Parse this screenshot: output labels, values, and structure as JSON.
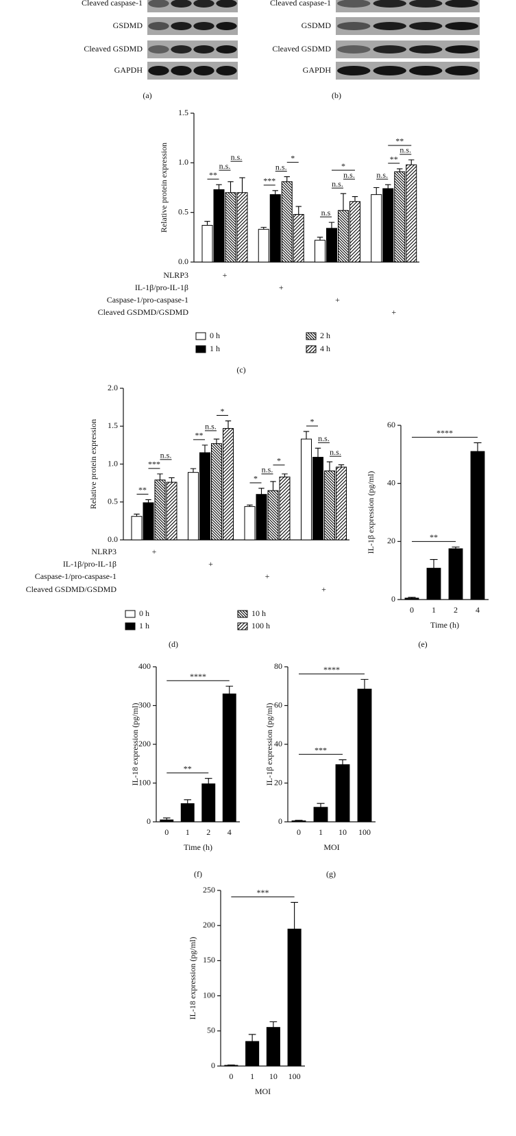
{
  "blots": [
    {
      "label": "(a)",
      "rows": [
        "Cleaved caspase-1",
        "GSDMD",
        "Cleaved GSDMD",
        "GAPDH"
      ]
    },
    {
      "label": "(b)",
      "rows": [
        "Cleaved caspase-1",
        "GSDMD",
        "Cleaved GSDMD",
        "GAPDH"
      ]
    }
  ],
  "chart_data": [
    {
      "type": "grouped-bar",
      "panel": "(c)",
      "ylabel": "Relative protein expression",
      "marker": "+",
      "categories": [
        "NLRP3",
        "IL-1β/pro-IL-1β",
        "Caspase-1/pro-caspase-1",
        "Cleaved GSDMD/GSDMD"
      ],
      "ylim": [
        0,
        1.5
      ],
      "yticks": [
        {
          "value": 0,
          "label": "0.0"
        },
        0.5,
        {
          "value": 1,
          "label": "1.0"
        },
        1.5
      ],
      "series": [
        {
          "name": "0 h",
          "color": "#ffffff",
          "pattern": "none",
          "values": [
            0.37,
            0.33,
            0.22,
            0.68
          ],
          "errors": [
            0.04,
            0.02,
            0.03,
            0.07
          ]
        },
        {
          "name": "1 h",
          "color": "#000000",
          "pattern": "none",
          "values": [
            0.73,
            0.68,
            0.34,
            0.74
          ],
          "errors": [
            0.05,
            0.04,
            0.06,
            0.04
          ]
        },
        {
          "name": "2 h",
          "color": "#ffffff",
          "pattern": "hatch-back",
          "values": [
            0.7,
            0.81,
            0.52,
            0.91
          ],
          "errors": [
            0.11,
            0.05,
            0.17,
            0.03
          ]
        },
        {
          "name": "4 h",
          "color": "#ffffff",
          "pattern": "hatch-fwd",
          "values": [
            0.7,
            0.48,
            0.61,
            0.98
          ],
          "errors": [
            0.15,
            0.08,
            0.05,
            0.05
          ]
        }
      ],
      "annotations": [
        {
          "label": "**",
          "group": 0,
          "from": 0,
          "to": 1
        },
        {
          "label": "n.s.",
          "group": 0,
          "from": 1,
          "to": 2
        },
        {
          "label": "n.s.",
          "group": 0,
          "from": 2,
          "to": 3
        },
        {
          "label": "***",
          "group": 1,
          "from": 0,
          "to": 1
        },
        {
          "label": "n.s.",
          "group": 1,
          "from": 1,
          "to": 2
        },
        {
          "label": "*",
          "group": 1,
          "from": 2,
          "to": 3
        },
        {
          "label": "n.s",
          "group": 2,
          "from": 0,
          "to": 1
        },
        {
          "label": "n.s.",
          "group": 2,
          "from": 1,
          "to": 2
        },
        {
          "label": "n.s.",
          "group": 2,
          "from": 2,
          "to": 3
        },
        {
          "label": "*",
          "group": 2,
          "from": 1,
          "to": 3
        },
        {
          "label": "n.s.",
          "group": 3,
          "from": 0,
          "to": 1
        },
        {
          "label": "**",
          "group": 3,
          "from": 1,
          "to": 2
        },
        {
          "label": "n.s.",
          "group": 3,
          "from": 2,
          "to": 3
        },
        {
          "label": "**",
          "group": 3,
          "from": 1,
          "to": 3
        }
      ]
    },
    {
      "type": "grouped-bar",
      "panel": "(d)",
      "ylabel": "Relative protein expression",
      "marker": "+",
      "categories": [
        "NLRP3",
        "IL-1β/pro-IL-1β",
        "Caspase-1/pro-caspase-1",
        "Cleaved GSDMD/GSDMD"
      ],
      "ylim": [
        0,
        2
      ],
      "yticks": [
        {
          "value": 0,
          "label": "0.0"
        },
        0.5,
        {
          "value": 1,
          "label": "1.0"
        },
        1.5,
        {
          "value": 2,
          "label": "2.0"
        }
      ],
      "series": [
        {
          "name": "0 h",
          "color": "#ffffff",
          "pattern": "none",
          "values": [
            0.31,
            0.89,
            0.44,
            1.33
          ],
          "errors": [
            0.03,
            0.05,
            0.02,
            0.1
          ]
        },
        {
          "name": "1 h",
          "color": "#000000",
          "pattern": "none",
          "values": [
            0.49,
            1.15,
            0.6,
            1.09
          ],
          "errors": [
            0.04,
            0.1,
            0.08,
            0.12
          ]
        },
        {
          "name": "10 h",
          "color": "#ffffff",
          "pattern": "hatch-back",
          "values": [
            0.79,
            1.27,
            0.65,
            0.91
          ],
          "errors": [
            0.08,
            0.06,
            0.12,
            0.12
          ]
        },
        {
          "name": "100 h",
          "color": "#ffffff",
          "pattern": "hatch-fwd",
          "values": [
            0.76,
            1.47,
            0.83,
            0.96
          ],
          "errors": [
            0.06,
            0.1,
            0.04,
            0.03
          ]
        }
      ],
      "annotations": [
        {
          "label": "**",
          "group": 0,
          "from": 0,
          "to": 1
        },
        {
          "label": "***",
          "group": 0,
          "from": 1,
          "to": 2
        },
        {
          "label": "n.s.",
          "group": 0,
          "from": 2,
          "to": 3
        },
        {
          "label": "**",
          "group": 1,
          "from": 0,
          "to": 1
        },
        {
          "label": "n.s.",
          "group": 1,
          "from": 1,
          "to": 2
        },
        {
          "label": "*",
          "group": 1,
          "from": 2,
          "to": 3
        },
        {
          "label": "*",
          "group": 2,
          "from": 0,
          "to": 1
        },
        {
          "label": "n.s.",
          "group": 2,
          "from": 1,
          "to": 2
        },
        {
          "label": "*",
          "group": 2,
          "from": 2,
          "to": 3
        },
        {
          "label": "*",
          "group": 3,
          "from": 0,
          "to": 1
        },
        {
          "label": "n.s.",
          "group": 3,
          "from": 1,
          "to": 2
        },
        {
          "label": "n.s.",
          "group": 3,
          "from": 2,
          "to": 3
        }
      ]
    },
    {
      "type": "bar",
      "panel": "(e)",
      "ylabel": "IL-1β expression (pg/ml)",
      "xlabel": "Time (h)",
      "color": "#000000",
      "categories": [
        "0",
        "1",
        "2",
        "4"
      ],
      "values": [
        0.5,
        10.8,
        17.5,
        51
      ],
      "errors": [
        0.3,
        3,
        0.6,
        3
      ],
      "ylim": [
        0,
        60
      ],
      "yticks": [
        0,
        20,
        40,
        60
      ],
      "annotations": [
        {
          "label": "**",
          "from": 0,
          "to": 2
        },
        {
          "label": "****",
          "from": 0,
          "to": 3
        }
      ]
    },
    {
      "type": "bar",
      "panel": "(f)",
      "ylabel": "IL-18 expression (pg/ml)",
      "xlabel": "Time (h)",
      "color": "#000000",
      "categories": [
        "0",
        "1",
        "2",
        "4"
      ],
      "values": [
        5,
        47,
        98,
        330
      ],
      "errors": [
        5,
        10,
        14,
        20
      ],
      "ylim": [
        0,
        400
      ],
      "yticks": [
        0,
        100,
        200,
        300,
        400
      ],
      "annotations": [
        {
          "label": "**",
          "from": 0,
          "to": 2
        },
        {
          "label": "****",
          "from": 0,
          "to": 3
        }
      ]
    },
    {
      "type": "bar",
      "panel": "(g)",
      "ylabel": "IL-1β expression (pg/ml)",
      "xlabel": "MOI",
      "color": "#000000",
      "categories": [
        "0",
        "1",
        "10",
        "100"
      ],
      "values": [
        0.5,
        7.5,
        29.5,
        68.5
      ],
      "errors": [
        0.3,
        2,
        2.5,
        5
      ],
      "ylim": [
        0,
        80
      ],
      "yticks": [
        0,
        20,
        40,
        60,
        80
      ],
      "annotations": [
        {
          "label": "***",
          "from": 0,
          "to": 2
        },
        {
          "label": "****",
          "from": 0,
          "to": 3
        }
      ]
    },
    {
      "type": "bar",
      "ylabel": "IL-18 expression (pg/ml)",
      "xlabel": "MOI",
      "color": "#000000",
      "categories": [
        "0",
        "1",
        "10",
        "100"
      ],
      "values": [
        1,
        35,
        55,
        195
      ],
      "errors": [
        0.5,
        10,
        8,
        38
      ],
      "ylim": [
        0,
        250
      ],
      "yticks": [
        0,
        50,
        100,
        150,
        200,
        250
      ],
      "annotations": [
        {
          "label": "***",
          "from": 0,
          "to": 3
        }
      ]
    }
  ]
}
